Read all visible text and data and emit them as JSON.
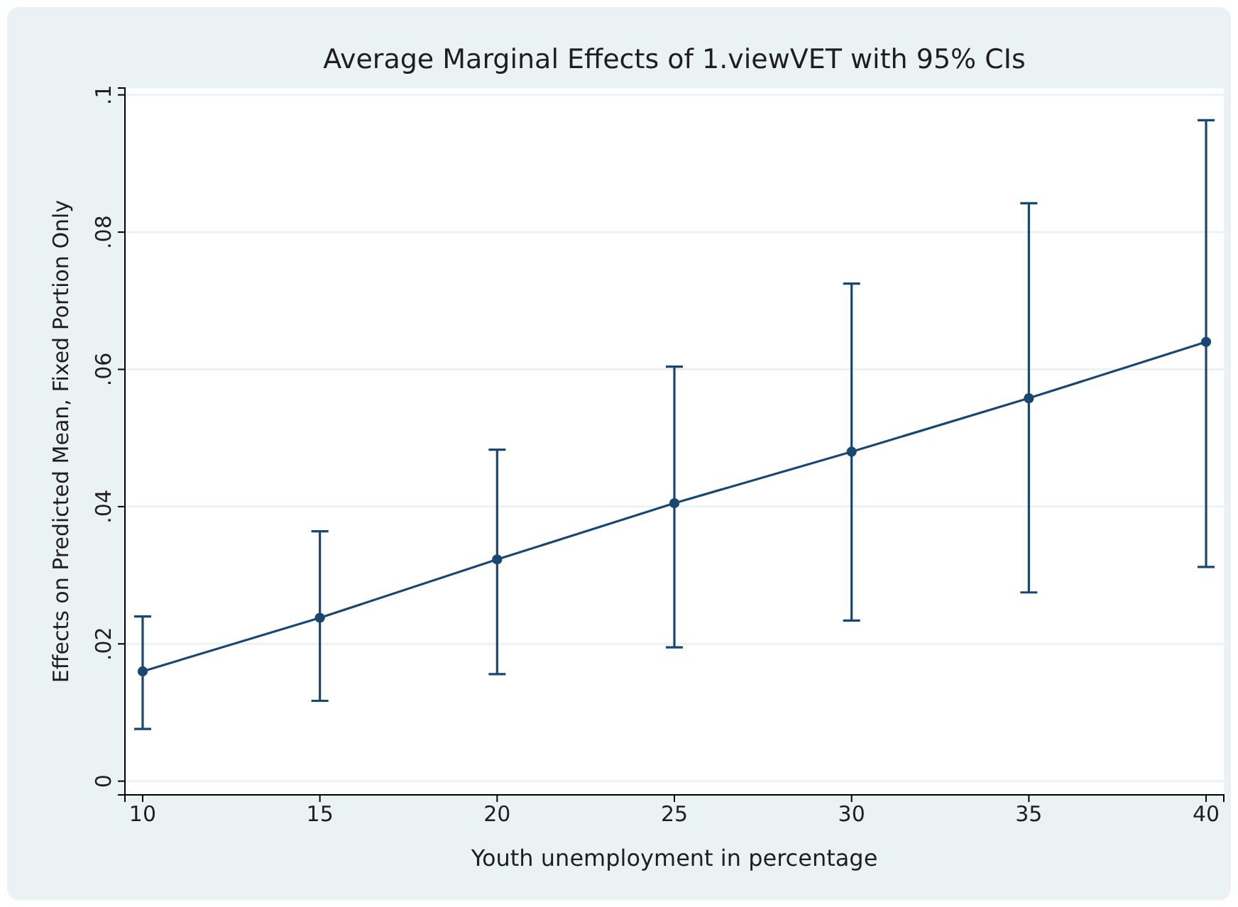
{
  "chart_data": {
    "type": "line",
    "title": "Average Marginal Effects of 1.viewVET with 95% CIs",
    "xlabel": "Youth unemployment in percentage",
    "ylabel": "Effects on Predicted Mean, Fixed Portion Only",
    "x": [
      10,
      15,
      20,
      25,
      30,
      35,
      40
    ],
    "values": [
      0.016,
      0.0238,
      0.0323,
      0.0405,
      0.048,
      0.0558,
      0.064
    ],
    "errors": [
      [
        0.0076,
        0.024
      ],
      [
        0.0117,
        0.0364
      ],
      [
        0.0156,
        0.0483
      ],
      [
        0.0195,
        0.0604
      ],
      [
        0.0234,
        0.0725
      ],
      [
        0.0275,
        0.0842
      ],
      [
        0.0312,
        0.0963
      ]
    ],
    "color": "#1a476f",
    "marker": "circle",
    "grid": "y",
    "xlim": [
      9.5,
      40.5
    ],
    "xticks": [
      10,
      15,
      20,
      25,
      30,
      35,
      40
    ],
    "ylim": [
      -0.002,
      0.101
    ],
    "yticks": [
      {
        "value": 0,
        "label": "0"
      },
      {
        "value": 0.02,
        "label": ".02"
      },
      {
        "value": 0.04,
        "label": ".04"
      },
      {
        "value": 0.06,
        "label": ".06"
      },
      {
        "value": 0.08,
        "label": ".08"
      },
      {
        "value": 0.1,
        "label": ".1"
      }
    ]
  }
}
